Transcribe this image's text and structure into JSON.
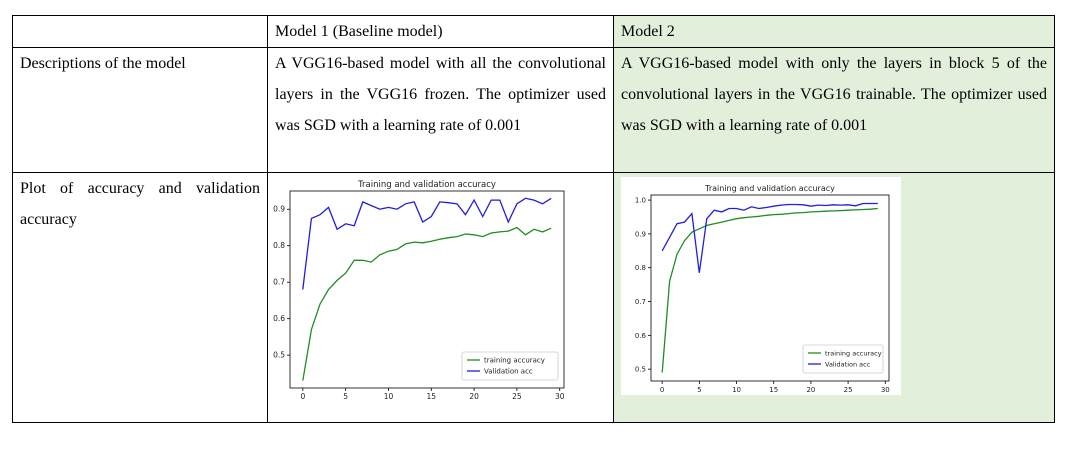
{
  "table": {
    "header": [
      "",
      "Model 1 (Baseline model)",
      "Model 2"
    ],
    "rows": [
      {
        "label": "Descriptions of the model",
        "model1": "A VGG16-based model with all the convolutional layers in the VGG16 frozen. The optimizer used was SGD with a learning rate of 0.001",
        "model2": "A VGG16-based model with only the layers in block 5 of the convolutional layers in the VGG16 trainable. The optimizer used was SGD with a learning rate of 0.001"
      },
      {
        "label": "Plot of accuracy and validation accuracy"
      }
    ]
  },
  "colors": {
    "model2_cell_bg": "#e2efda",
    "training": "#228b22",
    "validation": "#1f1fdd"
  },
  "chart_data": [
    {
      "type": "line",
      "title": "Training and validation accuracy",
      "xlabel": "",
      "ylabel": "",
      "xlim": [
        -1.5,
        30.5
      ],
      "ylim": [
        0.41,
        0.95
      ],
      "xticks": [
        0,
        5,
        10,
        15,
        20,
        25,
        30
      ],
      "yticks": [
        0.5,
        0.6,
        0.7,
        0.8,
        0.9
      ],
      "legend": "lower-right",
      "grid": false,
      "x": [
        0,
        1,
        2,
        3,
        4,
        5,
        6,
        7,
        8,
        9,
        10,
        11,
        12,
        13,
        14,
        15,
        16,
        17,
        18,
        19,
        20,
        21,
        22,
        23,
        24,
        25,
        26,
        27,
        28,
        29
      ],
      "series": [
        {
          "name": "training accuracy",
          "color": "#228b22",
          "values": [
            0.43,
            0.57,
            0.64,
            0.68,
            0.705,
            0.725,
            0.76,
            0.76,
            0.755,
            0.775,
            0.785,
            0.79,
            0.805,
            0.81,
            0.808,
            0.812,
            0.818,
            0.822,
            0.825,
            0.832,
            0.83,
            0.825,
            0.835,
            0.838,
            0.84,
            0.85,
            0.83,
            0.845,
            0.838,
            0.848
          ]
        },
        {
          "name": "Validation acc",
          "color": "#1f1fdd",
          "values": [
            0.68,
            0.875,
            0.885,
            0.905,
            0.845,
            0.86,
            0.855,
            0.92,
            0.91,
            0.9,
            0.905,
            0.9,
            0.915,
            0.92,
            0.865,
            0.88,
            0.92,
            0.918,
            0.915,
            0.885,
            0.925,
            0.88,
            0.925,
            0.925,
            0.865,
            0.915,
            0.93,
            0.925,
            0.915,
            0.93
          ]
        }
      ]
    },
    {
      "type": "line",
      "title": "Training and validation accuracy",
      "xlabel": "",
      "ylabel": "",
      "xlim": [
        -1.5,
        30.5
      ],
      "ylim": [
        0.465,
        1.015
      ],
      "xticks": [
        0,
        5,
        10,
        15,
        20,
        25,
        30
      ],
      "yticks": [
        0.5,
        0.6,
        0.7,
        0.8,
        0.9,
        1.0
      ],
      "legend": "lower-right",
      "grid": false,
      "x": [
        0,
        1,
        2,
        3,
        4,
        5,
        6,
        7,
        8,
        9,
        10,
        11,
        12,
        13,
        14,
        15,
        16,
        17,
        18,
        19,
        20,
        21,
        22,
        23,
        24,
        25,
        26,
        27,
        28,
        29
      ],
      "series": [
        {
          "name": "training accuracy",
          "color": "#228b22",
          "values": [
            0.49,
            0.76,
            0.84,
            0.88,
            0.905,
            0.915,
            0.925,
            0.93,
            0.935,
            0.94,
            0.945,
            0.948,
            0.95,
            0.952,
            0.955,
            0.957,
            0.958,
            0.96,
            0.962,
            0.963,
            0.965,
            0.966,
            0.967,
            0.968,
            0.969,
            0.97,
            0.971,
            0.972,
            0.973,
            0.975
          ]
        },
        {
          "name": "Validation acc",
          "color": "#1f1fdd",
          "values": [
            0.85,
            0.89,
            0.93,
            0.935,
            0.96,
            0.785,
            0.945,
            0.97,
            0.965,
            0.975,
            0.975,
            0.97,
            0.98,
            0.975,
            0.978,
            0.982,
            0.985,
            0.987,
            0.987,
            0.986,
            0.982,
            0.985,
            0.984,
            0.986,
            0.985,
            0.986,
            0.983,
            0.99,
            0.99,
            0.99
          ]
        }
      ]
    }
  ]
}
